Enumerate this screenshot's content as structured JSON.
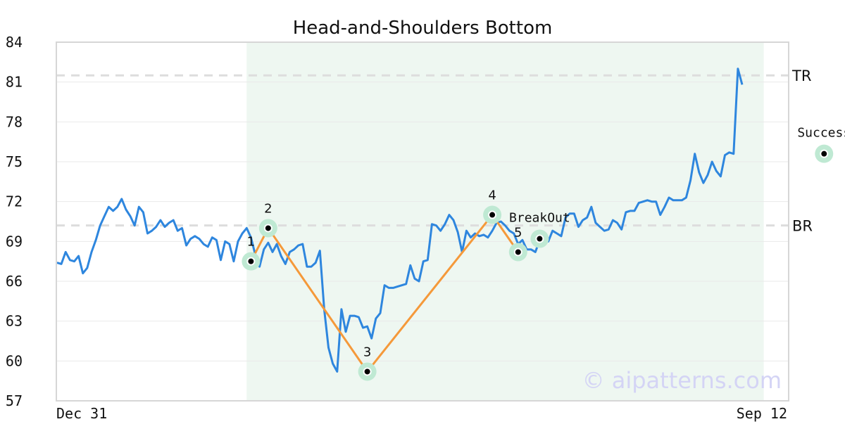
{
  "chart_data": {
    "type": "line",
    "title": "Head-and-Shoulders Bottom",
    "xlabel": "",
    "ylabel": "",
    "ylim": [
      57,
      84
    ],
    "yticks": [
      57,
      60,
      63,
      66,
      69,
      72,
      75,
      78,
      81,
      84
    ],
    "x_tick_labels": [
      "Dec 31",
      "Sep 12"
    ],
    "grid": "horizontal",
    "watermark": "© aipatterns.com",
    "colors": {
      "price": "#2e86de",
      "pattern": "#f5993a",
      "pattern_region": "#eef7f1",
      "marker_halo": "#bfe9d3",
      "level_line": "#dddddd"
    },
    "series": [
      {
        "values": [
          67.4,
          67.3,
          68.2,
          67.6,
          67.5,
          67.9,
          66.6,
          67.0,
          68.2,
          69.1,
          70.2,
          70.9,
          71.6,
          71.3,
          71.6,
          72.2,
          71.4,
          70.9,
          70.2,
          71.6,
          71.2,
          69.6,
          69.8,
          70.1,
          70.6,
          70.1,
          70.4,
          70.6,
          69.8,
          70.0,
          68.7,
          69.2,
          69.4,
          69.2,
          68.8,
          68.6,
          69.3,
          69.1,
          67.6,
          69.0,
          68.8,
          67.5,
          69.0,
          69.6,
          70.0,
          69.3,
          68.0,
          67.1,
          68.4,
          68.9,
          68.2,
          68.8,
          67.9,
          67.3,
          68.2,
          68.4,
          68.7,
          68.8,
          67.1,
          67.1,
          67.4,
          68.3,
          63.9,
          61.0,
          59.8,
          59.2,
          63.9,
          62.2,
          63.4,
          63.4,
          63.3,
          62.5,
          62.6,
          61.7,
          63.2,
          63.6,
          65.7,
          65.5,
          65.5,
          65.6,
          65.7,
          65.8,
          67.2,
          66.2,
          66.0,
          67.5,
          67.6,
          70.3,
          70.2,
          69.8,
          70.3,
          71.0,
          70.6,
          69.7,
          68.2,
          69.8,
          69.3,
          69.6,
          69.4,
          69.5,
          69.3,
          69.8,
          70.4,
          70.5,
          70.2,
          69.8,
          69.6,
          68.8,
          69.1,
          68.4,
          68.4,
          68.2,
          69.1,
          69.2,
          69.0,
          69.8,
          69.6,
          69.4,
          70.8,
          71.1,
          71.1,
          70.1,
          70.6,
          70.8,
          71.6,
          70.4,
          70.1,
          69.8,
          69.9,
          70.6,
          70.4,
          69.9,
          71.2,
          71.3,
          71.3,
          71.9,
          72.0,
          72.1,
          72.0,
          72.0,
          71.0,
          71.6,
          72.3,
          72.1,
          72.1,
          72.1,
          72.3,
          73.6,
          75.6,
          74.2,
          73.4,
          74.0,
          75.0,
          74.3,
          73.9,
          75.5,
          75.7,
          75.6,
          82.0,
          80.8
        ]
      }
    ],
    "pattern_region": {
      "start_index": 44,
      "end_index": 164
    },
    "levels": [
      {
        "label": "TR",
        "value": 81.5
      },
      {
        "label": "BR",
        "value": 70.2
      }
    ],
    "pattern_points": [
      {
        "label": "1",
        "index": 45,
        "value": 67.5
      },
      {
        "label": "2",
        "index": 49,
        "value": 70.0
      },
      {
        "label": "3",
        "index": 72,
        "value": 59.2
      },
      {
        "label": "4",
        "index": 101,
        "value": 71.0
      },
      {
        "label": "5",
        "index": 107,
        "value": 68.2
      }
    ],
    "annotations": [
      {
        "label": "BreakOut",
        "index": 112,
        "value": 69.2
      },
      {
        "label": "Success",
        "index": 178,
        "value": 75.6
      }
    ]
  }
}
